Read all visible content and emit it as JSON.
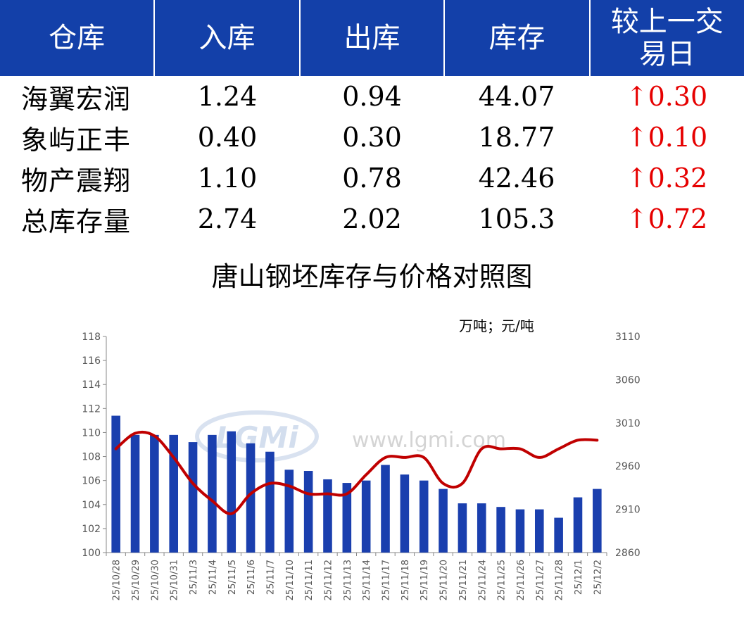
{
  "table": {
    "headers": [
      "仓库",
      "入库",
      "出库",
      "库存",
      "较上一交易日"
    ],
    "header_last_lines": [
      "较上一交",
      "易日"
    ],
    "rows": [
      {
        "name": "海翼宏润",
        "in": "1.24",
        "out": "0.94",
        "stock": "44.07",
        "change": "↑0.30"
      },
      {
        "name": "象屿正丰",
        "in": "0.40",
        "out": "0.30",
        "stock": "18.77",
        "change": "↑0.10"
      },
      {
        "name": "物产震翔",
        "in": "1.10",
        "out": "0.78",
        "stock": "42.46",
        "change": "↑0.32"
      },
      {
        "name": "总库存量",
        "in": "2.74",
        "out": "2.02",
        "stock": "105.3",
        "change": "↑0.72"
      }
    ]
  },
  "watermark": "www.lgmi.com",
  "chart_data": {
    "type": "bar",
    "title": "唐山钢坯库存与价格对照图",
    "unit_label": "万吨；元/吨",
    "categories": [
      "25/10/28",
      "25/10/29",
      "25/10/30",
      "25/10/31",
      "25/11/3",
      "25/11/4",
      "25/11/5",
      "25/11/6",
      "25/11/7",
      "25/11/10",
      "25/11/11",
      "25/11/12",
      "25/11/13",
      "25/11/14",
      "25/11/17",
      "25/11/18",
      "25/11/19",
      "25/11/20",
      "25/11/21",
      "25/11/24",
      "25/11/25",
      "25/11/26",
      "25/11/27",
      "25/11/28",
      "25/12/1",
      "25/12/2"
    ],
    "series": [
      {
        "kind": "bar",
        "axis": "left",
        "color": "#1a3fae",
        "values": [
          111.4,
          109.8,
          109.8,
          109.8,
          109.2,
          109.8,
          110.1,
          109.1,
          108.4,
          106.9,
          106.8,
          106.1,
          105.8,
          106.0,
          107.3,
          106.5,
          106.0,
          105.3,
          104.1,
          104.1,
          103.8,
          103.6,
          103.6,
          102.9,
          104.6,
          105.3
        ]
      },
      {
        "kind": "line",
        "axis": "right",
        "color": "#c00000",
        "values": [
          2980,
          2998,
          2995,
          2970,
          2940,
          2920,
          2905,
          2928,
          2940,
          2937,
          2928,
          2928,
          2928,
          2950,
          2970,
          2970,
          2970,
          2940,
          2940,
          2980,
          2980,
          2980,
          2970,
          2980,
          2990,
          2990
        ]
      }
    ],
    "y_left": {
      "min": 100,
      "max": 118,
      "step": 2,
      "ticks": [
        "100",
        "102",
        "104",
        "106",
        "108",
        "110",
        "112",
        "114",
        "116",
        "118"
      ]
    },
    "y_right": {
      "min": 2860,
      "max": 3110,
      "ticks": [
        "2860",
        "2910",
        "2960",
        "3010",
        "3060",
        "3110"
      ]
    },
    "grid": false
  }
}
